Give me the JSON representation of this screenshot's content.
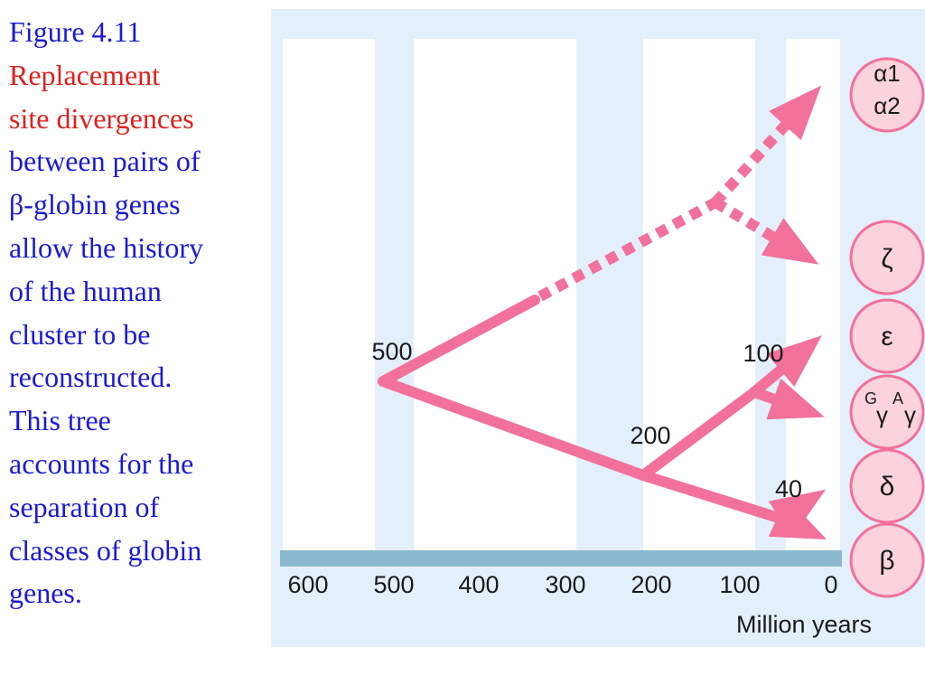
{
  "caption": {
    "lines": [
      {
        "text": "Figure 4.11",
        "color": "#1a1ad6"
      },
      {
        "text": "Replacement",
        "color": "#e0201c"
      },
      {
        "text": "site divergences",
        "color": "#e0201c"
      },
      {
        "text": "between pairs of",
        "color": "#1a1ad6"
      },
      {
        "text": "β-globin genes",
        "color": "#1a1ad6"
      },
      {
        "text": "allow the history",
        "color": "#1a1ad6"
      },
      {
        "text": "of the human",
        "color": "#1a1ad6"
      },
      {
        "text": "cluster to be",
        "color": "#1a1ad6"
      },
      {
        "text": "reconstructed.",
        "color": "#1a1ad6"
      },
      {
        "text": "This tree",
        "color": "#1a1ad6"
      },
      {
        "text": "accounts for the",
        "color": "#1a1ad6"
      },
      {
        "text": "separation of",
        "color": "#1a1ad6"
      },
      {
        "text": "classes of globin",
        "color": "#1a1ad6"
      },
      {
        "text": "genes.",
        "color": "#1a1ad6"
      }
    ]
  },
  "axis": {
    "ticks": [
      "600",
      "500",
      "400",
      "300",
      "200",
      "100",
      "0"
    ],
    "title": "Million years"
  },
  "branch_labels": {
    "b500": "500",
    "b200": "200",
    "b100": "100",
    "b40": "40"
  },
  "nodes": {
    "alpha": {
      "line1": "α1",
      "line2": "α2"
    },
    "zeta": "ζ",
    "epsilon": "ε",
    "gamma": {
      "g1": "G",
      "gamma1": "γ",
      "a": "A",
      "gamma2": "γ"
    },
    "delta": "δ",
    "beta": "β"
  },
  "colors": {
    "arrow": "#f2719b",
    "node_fill": "#fbd3dc",
    "node_stroke": "#f2719b",
    "panel": "#e3f0fb",
    "axis_bar": "#8bb8cf",
    "band": "#ffffff"
  }
}
